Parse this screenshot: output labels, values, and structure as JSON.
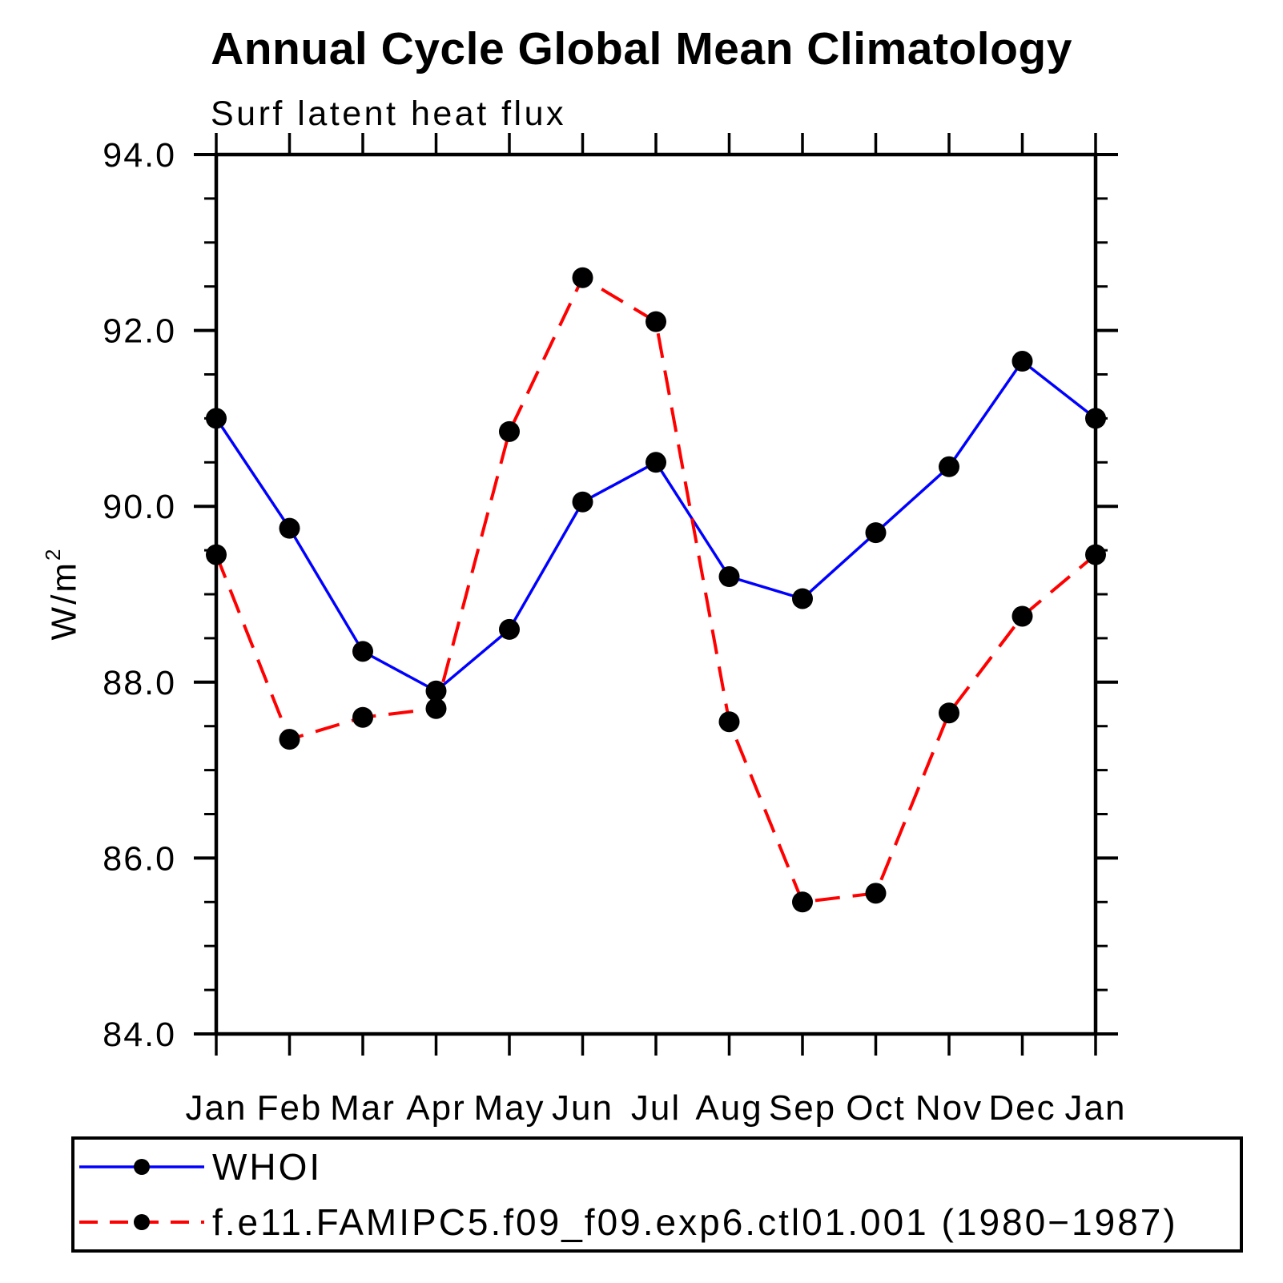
{
  "chart_data": {
    "type": "line",
    "title": "Annual Cycle Global Mean Climatology",
    "subtitle": "Surf latent heat flux",
    "ylabel_base": "W/m",
    "ylabel_exponent": "2",
    "categories": [
      "Jan",
      "Feb",
      "Mar",
      "Apr",
      "May",
      "Jun",
      "Jul",
      "Aug",
      "Sep",
      "Oct",
      "Nov",
      "Dec",
      "Jan"
    ],
    "ylim": [
      84.0,
      94.0
    ],
    "ytick_values": [
      94.0,
      92.0,
      90.0,
      88.0,
      86.0,
      84.0
    ],
    "ytick_labels": [
      "94.0",
      "92.0",
      "90.0",
      "88.0",
      "86.0",
      "84.0"
    ],
    "ytick_minor_step": 0.5,
    "grid": "off",
    "legend_position": "bottom",
    "series": [
      {
        "name": "WHOI",
        "color": "#0000ff",
        "line_style": "solid",
        "marker": "circle",
        "marker_color": "#000000",
        "values": [
          91.0,
          89.75,
          88.35,
          87.9,
          88.6,
          90.05,
          90.5,
          89.2,
          88.95,
          89.7,
          90.45,
          91.65,
          91.0
        ]
      },
      {
        "name": "f.e11.FAMIPC5.f09_f09.exp6.ctl01.001 (1980−1987)",
        "color": "#ff0000",
        "line_style": "dashed",
        "marker": "circle",
        "marker_color": "#000000",
        "values": [
          89.45,
          87.35,
          87.6,
          87.7,
          90.85,
          92.6,
          92.1,
          87.55,
          85.5,
          85.6,
          87.65,
          88.75,
          89.45
        ]
      }
    ]
  }
}
